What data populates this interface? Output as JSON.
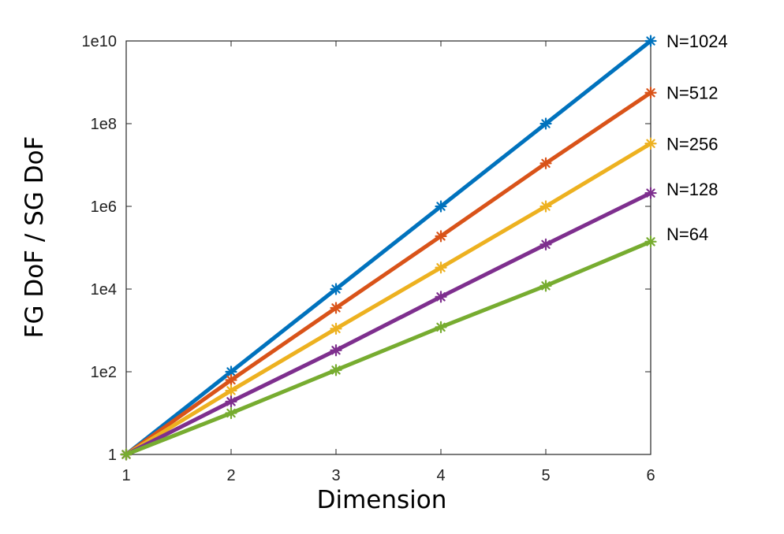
{
  "chart_data": {
    "type": "line",
    "title": "",
    "xlabel": "Dimension",
    "ylabel": "FG DoF / SG DoF",
    "x": [
      1,
      2,
      3,
      4,
      5,
      6
    ],
    "xlim": [
      1,
      6
    ],
    "y_scale": "log",
    "ylim": [
      1,
      10000000000
    ],
    "x_ticks": [
      {
        "value": 1,
        "label": "1"
      },
      {
        "value": 2,
        "label": "2"
      },
      {
        "value": 3,
        "label": "3"
      },
      {
        "value": 4,
        "label": "4"
      },
      {
        "value": 5,
        "label": "5"
      },
      {
        "value": 6,
        "label": "6"
      }
    ],
    "y_ticks": [
      {
        "value": 1,
        "label": "1"
      },
      {
        "value": 100,
        "label": "1e2"
      },
      {
        "value": 10000,
        "label": "1e4"
      },
      {
        "value": 1000000,
        "label": "1e6"
      },
      {
        "value": 100000000,
        "label": "1e8"
      },
      {
        "value": 10000000000,
        "label": "1e10"
      }
    ],
    "grid": false,
    "legend": "direct labels at right end of each line",
    "marker": "asterisk",
    "series": [
      {
        "name": "N=1024",
        "color": "#0072BD",
        "values": [
          1,
          100,
          10000,
          1000000,
          100000000,
          10000000000
        ]
      },
      {
        "name": "N=512",
        "color": "#D95319",
        "values": [
          1,
          63,
          3500,
          190000,
          11000000,
          560000000
        ]
      },
      {
        "name": "N=256",
        "color": "#EDB120",
        "values": [
          1,
          35,
          1100,
          33000,
          1000000,
          33000000
        ]
      },
      {
        "name": "N=128",
        "color": "#7E2F8E",
        "values": [
          1,
          19,
          330,
          6500,
          120000,
          2100000
        ]
      },
      {
        "name": "N=64",
        "color": "#77AC30",
        "values": [
          1,
          10,
          110,
          1200,
          12000,
          140000
        ]
      }
    ]
  }
}
